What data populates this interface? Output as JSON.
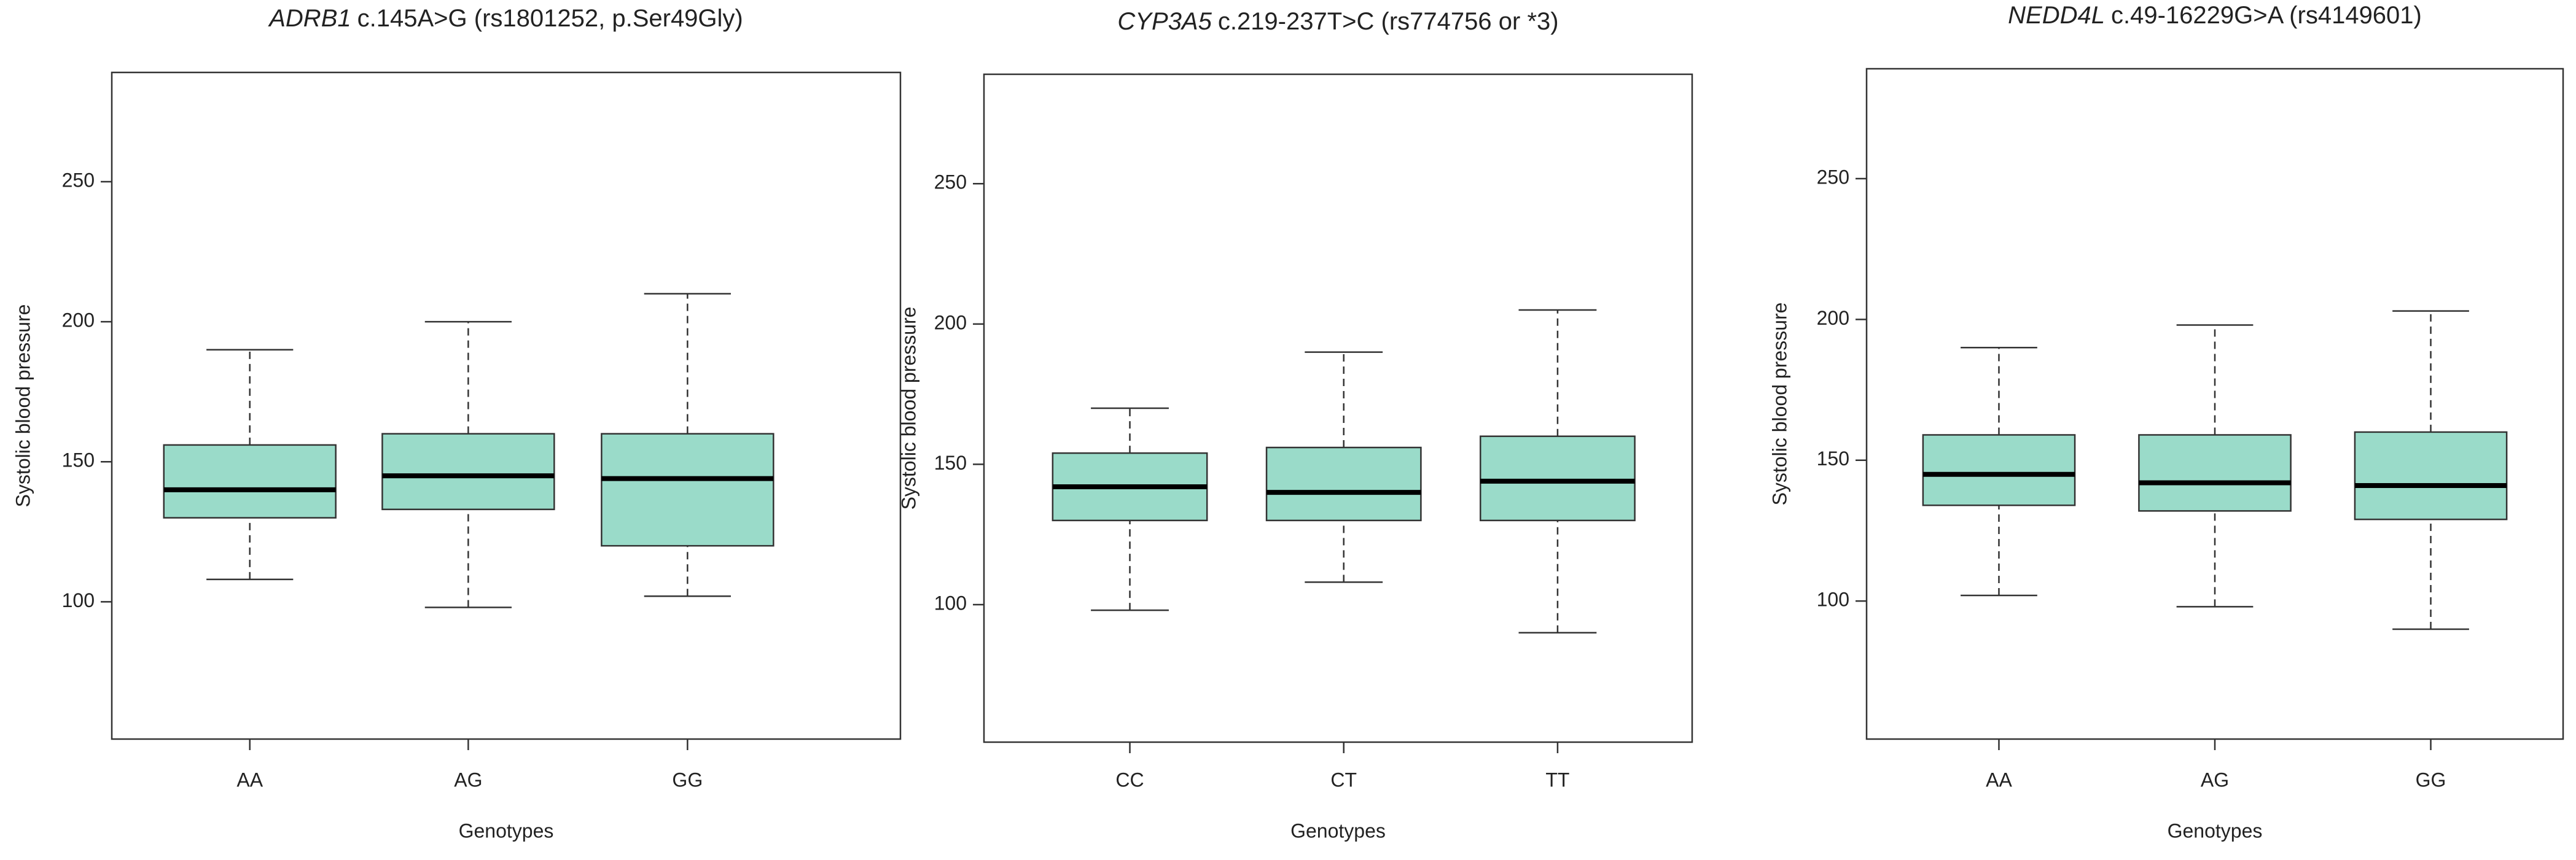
{
  "chart_data": [
    {
      "type": "box",
      "title_italic": "ADRB1",
      "title": "c.145A>G (rs1801252, p.Ser49Gly)",
      "x_label": "Genotypes",
      "y_label": "Systolic blood pressure",
      "color": "#9adbc9",
      "categories": [
        "AA",
        "AG",
        "GG"
      ],
      "whisker_low": [
        108,
        98,
        102
      ],
      "q1": [
        130,
        133,
        120
      ],
      "median": [
        140,
        145,
        144
      ],
      "q3": [
        156,
        160,
        160
      ],
      "whisker_high": [
        190,
        200,
        210
      ],
      "ylim": [
        51,
        289
      ],
      "yticks": [
        100,
        150,
        200,
        250
      ]
    },
    {
      "type": "box",
      "title_italic": "CYP3A5",
      "title": "c.219-237T>C (rs774756 or *3)",
      "x_label": "Genotypes",
      "y_label": "Systolic blood pressure",
      "color": "#9adbc9",
      "categories": [
        "CC",
        "CT",
        "TT"
      ],
      "whisker_low": [
        98,
        108,
        90
      ],
      "q1": [
        130,
        130,
        130
      ],
      "median": [
        142,
        140,
        144
      ],
      "q3": [
        154,
        156,
        160
      ],
      "whisker_high": [
        170,
        190,
        205
      ],
      "ylim": [
        51,
        289
      ],
      "yticks": [
        100,
        150,
        200,
        250
      ]
    },
    {
      "type": "box",
      "title_italic": "NEDD4L",
      "title": "c.49-16229G>A (rs4149601)",
      "x_label": "Genotypes",
      "y_label": "Systolic blood pressure",
      "color": "#9adbc9",
      "categories": [
        "AA",
        "AG",
        "GG"
      ],
      "whisker_low": [
        102,
        98,
        90
      ],
      "q1": [
        134,
        132,
        129
      ],
      "median": [
        145,
        142,
        141
      ],
      "q3": [
        159,
        159,
        160
      ],
      "whisker_high": [
        190,
        198,
        203
      ],
      "ylim": [
        51,
        289
      ],
      "yticks": [
        100,
        150,
        200,
        250
      ]
    }
  ]
}
